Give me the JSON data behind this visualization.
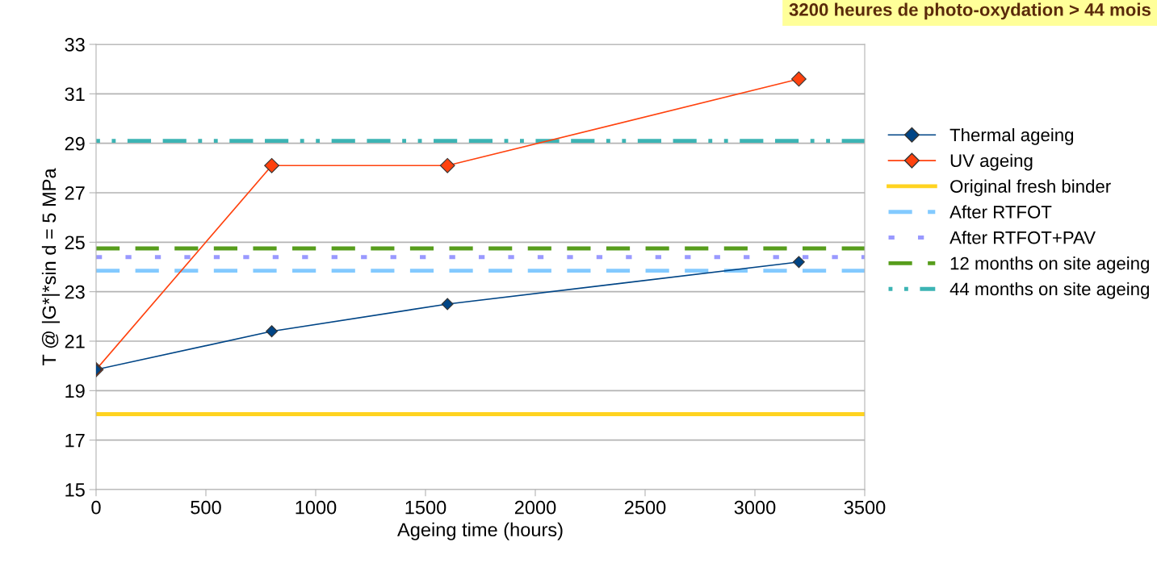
{
  "chart_data": {
    "type": "line",
    "xlabel": "Ageing time (hours)",
    "ylabel": "T @ |G*|*sin d = 5 MPa",
    "annotations": [
      "3200 heures de photo-oxydation > 44 mois"
    ],
    "series": [
      {
        "name": "Thermal ageing",
        "color": "#004586",
        "x": [
          0,
          800,
          1600,
          3200
        ],
        "values": [
          19.85,
          21.4,
          22.5,
          24.2
        ]
      },
      {
        "name": "UV ageing",
        "color": "#ff420e",
        "x": [
          0,
          800,
          1600,
          3200
        ],
        "values": [
          19.85,
          28.1,
          28.1,
          31.6
        ]
      }
    ],
    "ref_lines": [
      {
        "axis": "y",
        "value": 18.05,
        "label": "Original fresh binder",
        "color": "#ffd320",
        "line_style": "solid"
      },
      {
        "axis": "y",
        "value": 23.85,
        "label": "After RTFOT",
        "color": "#83caff",
        "line_style": "dashed"
      },
      {
        "axis": "y",
        "value": 24.4,
        "label": "After RTFOT+PAV",
        "color": "#9999ff",
        "line_style": "dotted"
      },
      {
        "axis": "y",
        "value": 24.75,
        "label": "12 months on site ageing",
        "color": "#579d1c",
        "line_style": "dashed"
      },
      {
        "axis": "y",
        "value": 29.1,
        "label": "44 months on site ageing",
        "color": "#3cb4b4",
        "line_style": "dashdot"
      }
    ],
    "xlim": [
      0,
      3500
    ],
    "xticks": [
      0,
      500,
      1000,
      1500,
      2000,
      2500,
      3000,
      3500
    ],
    "ylim": [
      15,
      33
    ],
    "yticks": [
      15,
      17,
      19,
      21,
      23,
      25,
      27,
      29,
      31,
      33
    ],
    "grid": "y",
    "legend": "right",
    "marker": "diamond",
    "line_style": "solid"
  }
}
